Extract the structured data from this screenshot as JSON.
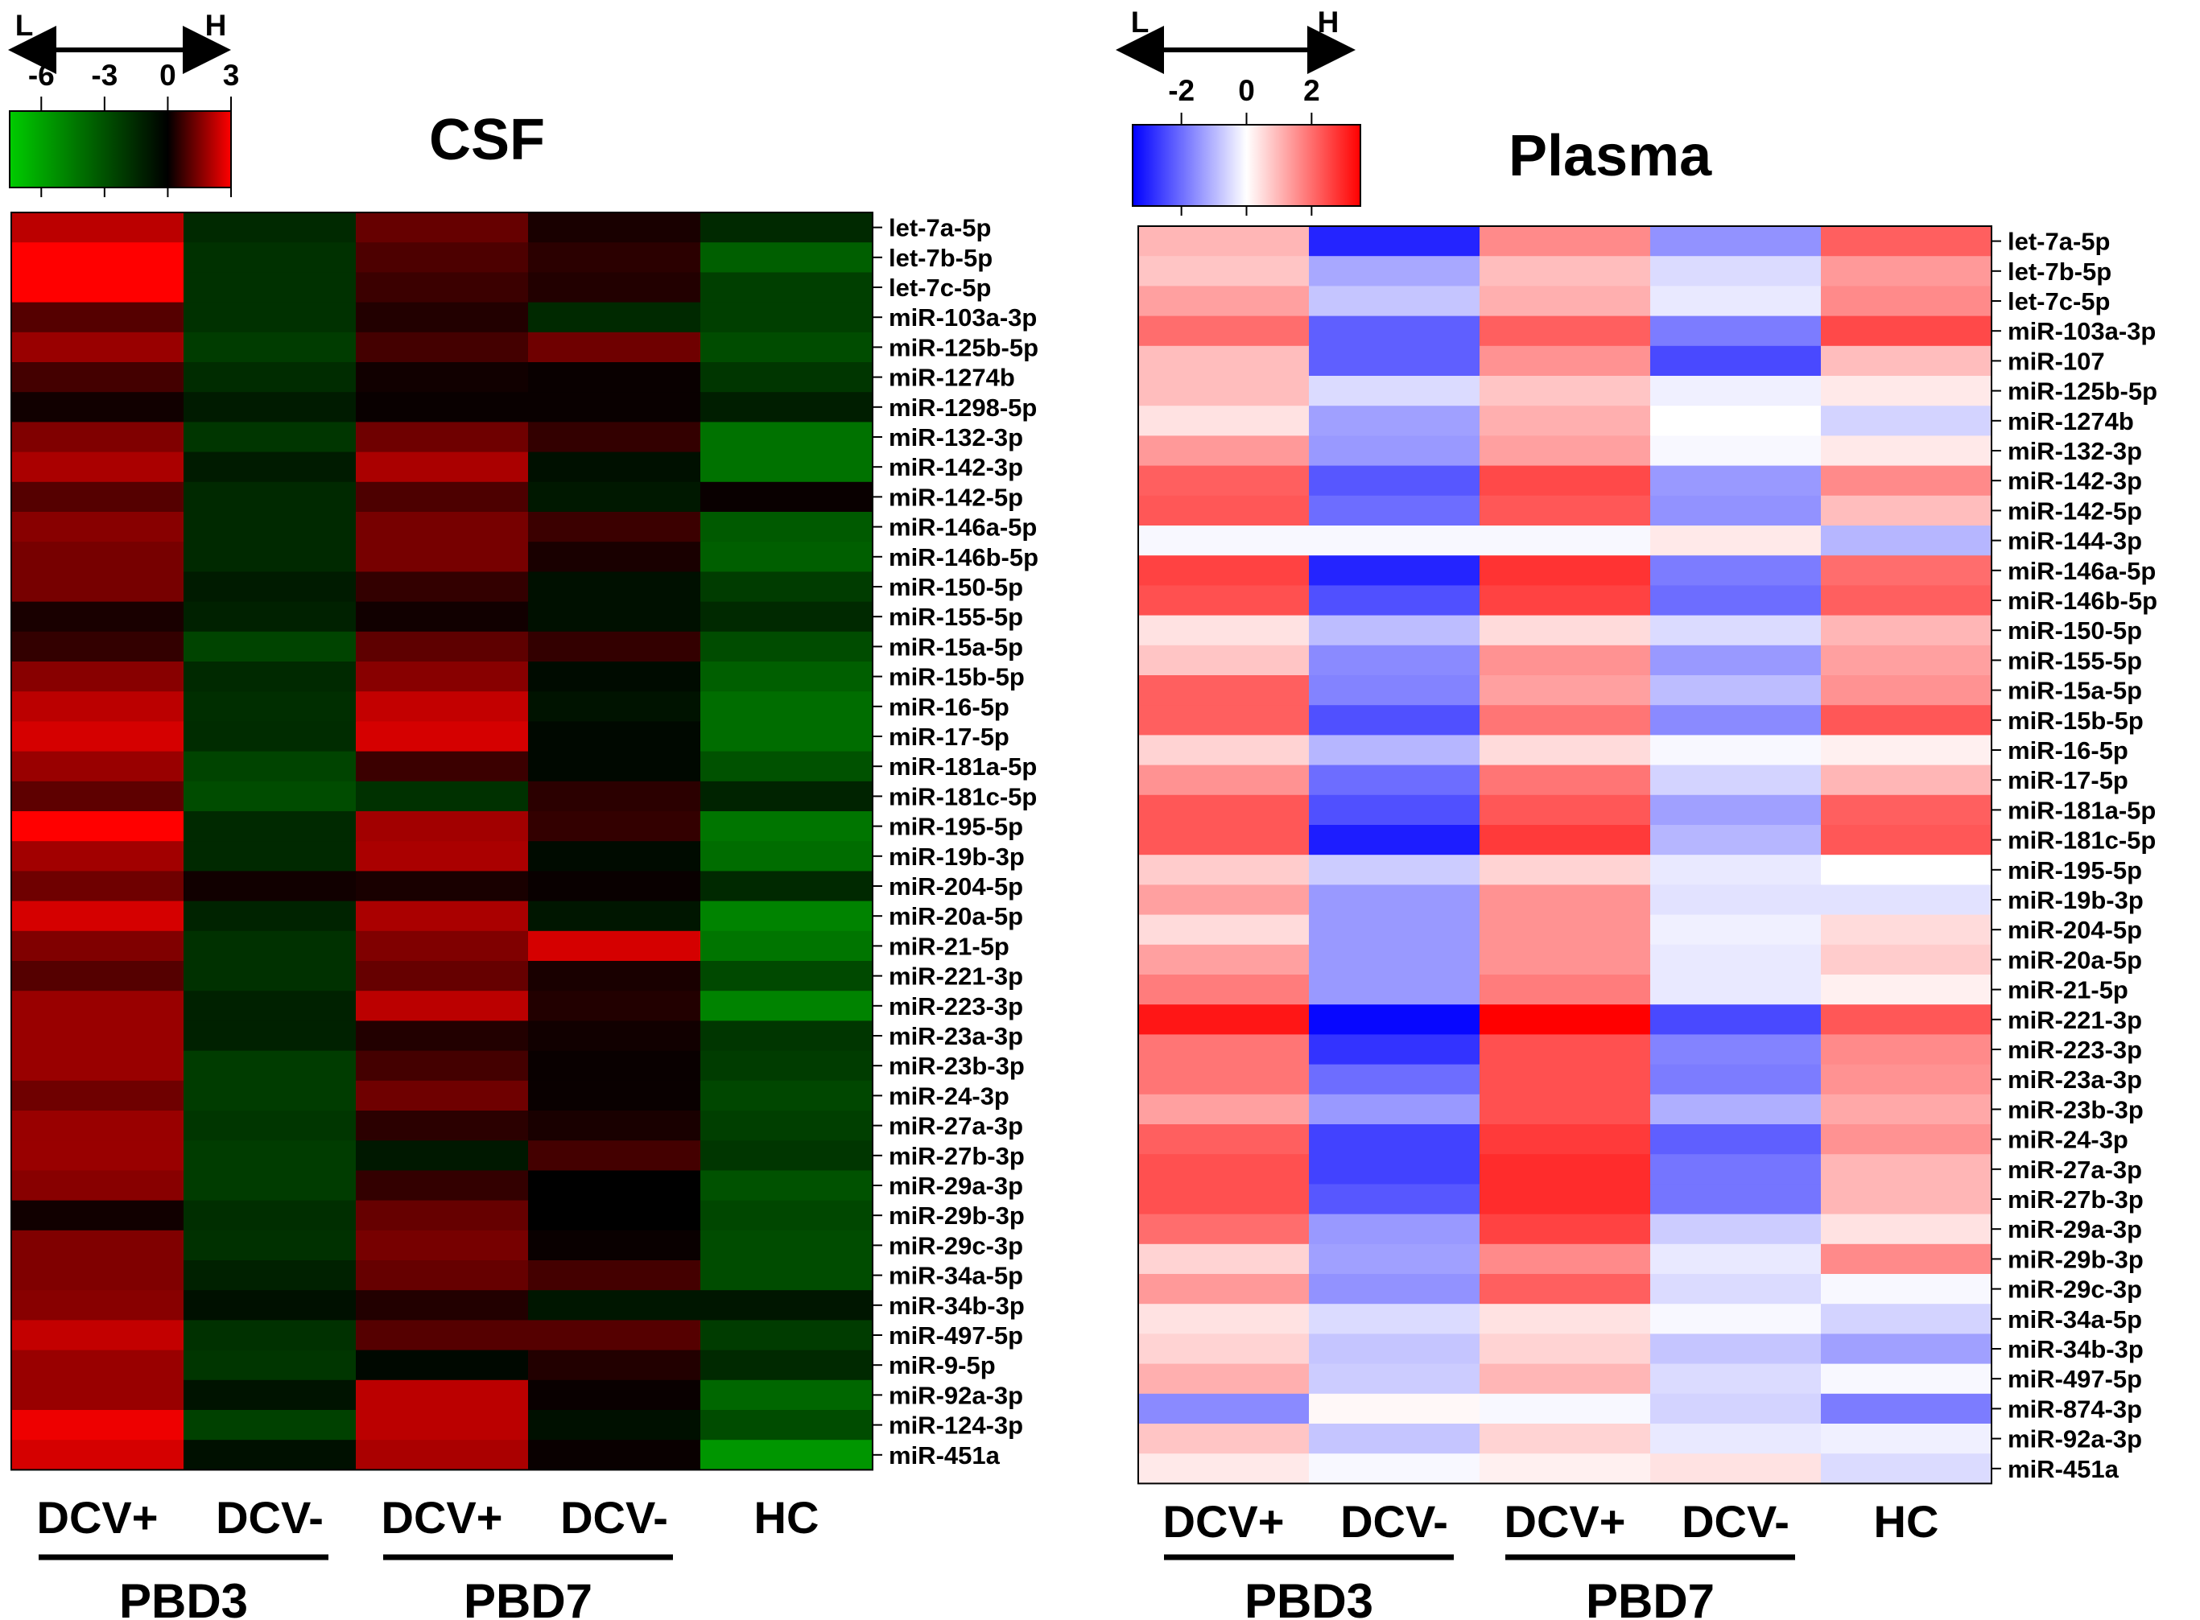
{
  "chart_data": [
    {
      "type": "heatmap",
      "title": "CSF",
      "colorscale": {
        "low_label": "L",
        "high_label": "H",
        "ticks": [
          "-6",
          "-3",
          "0",
          "3"
        ],
        "tick_values": [
          -6,
          -3,
          0,
          3
        ],
        "range": [
          -7.5,
          3
        ],
        "colors": [
          "#00cc00",
          "#000000",
          "#ff0000"
        ]
      },
      "columns": [
        "DCV+",
        "DCV-",
        "DCV+",
        "DCV-",
        "HC"
      ],
      "groups": [
        {
          "label": "PBD3",
          "columns": [
            0,
            1
          ]
        },
        {
          "label": "PBD7",
          "columns": [
            2,
            3
          ]
        }
      ],
      "rows": [
        "let-7a-5p",
        "let-7b-5p",
        "let-7c-5p",
        "miR-103a-3p",
        "miR-125b-5p",
        "miR-1274b",
        "miR-1298-5p",
        "miR-132-3p",
        "miR-142-3p",
        "miR-142-5p",
        "miR-146a-5p",
        "miR-146b-5p",
        "miR-150-5p",
        "miR-155-5p",
        "miR-15a-5p",
        "miR-15b-5p",
        "miR-16-5p",
        "miR-17-5p",
        "miR-181a-5p",
        "miR-181c-5p",
        "miR-195-5p",
        "miR-19b-3p",
        "miR-204-5p",
        "miR-20a-5p",
        "miR-21-5p",
        "miR-221-3p",
        "miR-223-3p",
        "miR-23a-3p",
        "miR-23b-3p",
        "miR-24-3p",
        "miR-27a-3p",
        "miR-27b-3p",
        "miR-29a-3p",
        "miR-29b-3p",
        "miR-29c-3p",
        "miR-34a-5p",
        "miR-34b-3p",
        "miR-497-5p",
        "miR-9-5p",
        "miR-92a-3p",
        "miR-124-3p",
        "miR-451a"
      ],
      "values": [
        [
          2.2,
          -1.5,
          1.2,
          0.3,
          -1.5
        ],
        [
          3.0,
          -1.8,
          0.9,
          0.5,
          -3.5
        ],
        [
          3.0,
          -1.8,
          0.7,
          0.4,
          -2.3
        ],
        [
          1.0,
          -1.8,
          0.4,
          -1.5,
          -2.3
        ],
        [
          1.8,
          -2.2,
          0.8,
          1.3,
          -2.8
        ],
        [
          0.8,
          -1.6,
          0.2,
          0.1,
          -2.0
        ],
        [
          0.2,
          -1.0,
          0.1,
          0.1,
          -1.1
        ],
        [
          1.5,
          -2.0,
          1.3,
          0.6,
          -4.2
        ],
        [
          2.0,
          -1.0,
          2.0,
          -0.6,
          -4.2
        ],
        [
          1.0,
          -1.5,
          0.9,
          -0.9,
          0.1
        ],
        [
          1.6,
          -1.5,
          1.4,
          0.7,
          -3.3
        ],
        [
          1.4,
          -1.5,
          1.4,
          0.3,
          -3.5
        ],
        [
          1.4,
          -1.0,
          0.6,
          -0.6,
          -2.2
        ],
        [
          0.3,
          -1.2,
          0.2,
          -0.6,
          -1.5
        ],
        [
          0.6,
          -2.5,
          1.1,
          0.6,
          -2.8
        ],
        [
          1.6,
          -1.5,
          1.6,
          -0.4,
          -3.5
        ],
        [
          2.2,
          -1.7,
          2.3,
          -0.7,
          -4.0
        ],
        [
          2.5,
          -1.6,
          2.5,
          -0.3,
          -4.0
        ],
        [
          1.8,
          -2.5,
          0.7,
          -0.3,
          -3.0
        ],
        [
          1.1,
          -2.8,
          -1.8,
          0.5,
          -1.3
        ],
        [
          3.0,
          -1.5,
          1.9,
          0.6,
          -4.3
        ],
        [
          1.9,
          -1.5,
          2.0,
          -0.4,
          -4.0
        ],
        [
          1.3,
          0.2,
          0.3,
          0.1,
          -1.5
        ],
        [
          2.5,
          -1.3,
          2.0,
          -0.8,
          -4.8
        ],
        [
          1.5,
          -1.8,
          1.5,
          2.5,
          -4.3
        ],
        [
          1.0,
          -1.8,
          1.2,
          0.3,
          -2.7
        ],
        [
          1.8,
          -1.2,
          2.2,
          0.4,
          -4.8
        ],
        [
          1.8,
          -1.2,
          0.4,
          0.2,
          -2.0
        ],
        [
          1.8,
          -2.2,
          0.8,
          0.1,
          -2.2
        ],
        [
          1.3,
          -2.2,
          1.3,
          0.1,
          -2.6
        ],
        [
          1.8,
          -2.0,
          0.5,
          0.3,
          -2.3
        ],
        [
          1.8,
          -2.2,
          -0.9,
          0.8,
          -2.0
        ],
        [
          1.6,
          -2.2,
          0.6,
          0.0,
          -3.0
        ],
        [
          0.2,
          -1.7,
          1.2,
          0.0,
          -2.6
        ],
        [
          1.5,
          -1.8,
          1.4,
          0.1,
          -2.8
        ],
        [
          1.5,
          -1.2,
          1.2,
          0.8,
          -2.8
        ],
        [
          1.6,
          -0.6,
          0.4,
          -0.8,
          -0.8
        ],
        [
          2.3,
          -1.8,
          1.0,
          1.0,
          -2.2
        ],
        [
          1.8,
          -2.0,
          -0.3,
          0.4,
          -1.5
        ],
        [
          1.8,
          -0.7,
          2.2,
          0.1,
          -3.8
        ],
        [
          2.8,
          -2.4,
          2.2,
          -0.6,
          -2.8
        ],
        [
          2.5,
          -0.6,
          2.0,
          0.1,
          -5.5
        ]
      ],
      "xlabel": "",
      "ylabel": ""
    },
    {
      "type": "heatmap",
      "title": "Plasma",
      "colorscale": {
        "low_label": "L",
        "high_label": "H",
        "ticks": [
          "-2",
          "0",
          "2"
        ],
        "tick_values": [
          -2,
          0,
          2
        ],
        "range": [
          -3.5,
          3.5
        ],
        "colors": [
          "#0000ff",
          "#ffffff",
          "#ff0000"
        ]
      },
      "columns": [
        "DCV+",
        "DCV-",
        "DCV+",
        "DCV-",
        "HC"
      ],
      "groups": [
        {
          "label": "PBD3",
          "columns": [
            0,
            1
          ]
        },
        {
          "label": "PBD7",
          "columns": [
            2,
            3
          ]
        }
      ],
      "rows": [
        "let-7a-5p",
        "let-7b-5p",
        "let-7c-5p",
        "miR-103a-3p",
        "miR-107",
        "miR-125b-5p",
        "miR-1274b",
        "miR-132-3p",
        "miR-142-3p",
        "miR-142-5p",
        "miR-144-3p",
        "miR-146a-5p",
        "miR-146b-5p",
        "miR-150-5p",
        "miR-155-5p",
        "miR-15a-5p",
        "miR-15b-5p",
        "miR-16-5p",
        "miR-17-5p",
        "miR-181a-5p",
        "miR-181c-5p",
        "miR-195-5p",
        "miR-19b-3p",
        "miR-204-5p",
        "miR-20a-5p",
        "miR-21-5p",
        "miR-221-3p",
        "miR-223-3p",
        "miR-23a-3p",
        "miR-23b-3p",
        "miR-24-3p",
        "miR-27a-3p",
        "miR-27b-3p",
        "miR-29a-3p",
        "miR-29b-3p",
        "miR-29c-3p",
        "miR-34a-5p",
        "miR-34b-3p",
        "miR-497-5p",
        "miR-874-3p",
        "miR-92a-3p",
        "miR-451a"
      ],
      "values": [
        [
          1.0,
          -3.0,
          1.6,
          -1.5,
          2.2
        ],
        [
          0.8,
          -1.2,
          0.9,
          -0.5,
          1.4
        ],
        [
          1.3,
          -0.8,
          1.1,
          -0.3,
          1.6
        ],
        [
          2.0,
          -2.2,
          2.2,
          -1.8,
          2.5
        ],
        [
          0.9,
          -2.2,
          1.5,
          -2.5,
          0.9
        ],
        [
          0.9,
          -0.5,
          0.8,
          -0.2,
          0.3
        ],
        [
          0.4,
          -1.3,
          1.1,
          0.0,
          -0.6
        ],
        [
          1.4,
          -1.4,
          1.3,
          -0.1,
          0.3
        ],
        [
          2.2,
          -2.3,
          2.5,
          -1.4,
          1.6
        ],
        [
          2.3,
          -2.0,
          2.3,
          -1.5,
          0.9
        ],
        [
          -0.1,
          -0.1,
          -0.1,
          0.3,
          -1.0
        ],
        [
          2.6,
          -3.0,
          2.8,
          -1.8,
          2.0
        ],
        [
          2.4,
          -2.4,
          2.6,
          -2.0,
          2.2
        ],
        [
          0.4,
          -0.9,
          0.5,
          -0.5,
          1.0
        ],
        [
          0.8,
          -1.6,
          1.5,
          -1.4,
          1.3
        ],
        [
          2.2,
          -1.7,
          1.3,
          -0.9,
          1.5
        ],
        [
          2.2,
          -2.4,
          1.9,
          -1.6,
          2.3
        ],
        [
          0.6,
          -1.0,
          0.5,
          -0.1,
          0.2
        ],
        [
          1.5,
          -2.0,
          1.9,
          -0.6,
          1.0
        ],
        [
          2.3,
          -2.4,
          2.3,
          -1.3,
          2.2
        ],
        [
          2.3,
          -3.1,
          2.7,
          -1.0,
          2.3
        ],
        [
          0.7,
          -0.7,
          0.6,
          -0.3,
          0.0
        ],
        [
          1.3,
          -1.4,
          1.5,
          -0.4,
          -0.4
        ],
        [
          0.5,
          -1.4,
          1.5,
          -0.2,
          0.5
        ],
        [
          1.3,
          -1.4,
          1.5,
          -0.3,
          0.7
        ],
        [
          1.8,
          -1.4,
          1.8,
          -0.3,
          0.2
        ],
        [
          3.2,
          -3.4,
          3.5,
          -2.5,
          2.3
        ],
        [
          1.9,
          -2.8,
          2.4,
          -1.7,
          1.6
        ],
        [
          1.9,
          -2.0,
          2.4,
          -1.8,
          1.5
        ],
        [
          1.3,
          -1.4,
          2.4,
          -1.1,
          1.2
        ],
        [
          2.2,
          -2.6,
          2.7,
          -2.2,
          1.5
        ],
        [
          2.4,
          -2.6,
          2.9,
          -1.9,
          1.0
        ],
        [
          2.4,
          -2.3,
          2.9,
          -1.9,
          1.0
        ],
        [
          2.0,
          -1.4,
          2.6,
          -0.7,
          0.4
        ],
        [
          0.6,
          -1.3,
          1.6,
          -0.3,
          1.6
        ],
        [
          1.4,
          -1.5,
          2.2,
          -0.5,
          -0.1
        ],
        [
          0.4,
          -0.5,
          0.4,
          -0.1,
          -0.6
        ],
        [
          0.6,
          -0.8,
          0.6,
          -0.8,
          -1.3
        ],
        [
          1.1,
          -0.7,
          1.0,
          -0.5,
          -0.1
        ],
        [
          -1.6,
          0.1,
          -0.1,
          -0.6,
          -1.8
        ],
        [
          0.8,
          -0.8,
          0.6,
          -0.3,
          -0.2
        ],
        [
          0.3,
          -0.1,
          0.2,
          0.4,
          -0.5
        ]
      ],
      "xlabel": "",
      "ylabel": ""
    }
  ]
}
